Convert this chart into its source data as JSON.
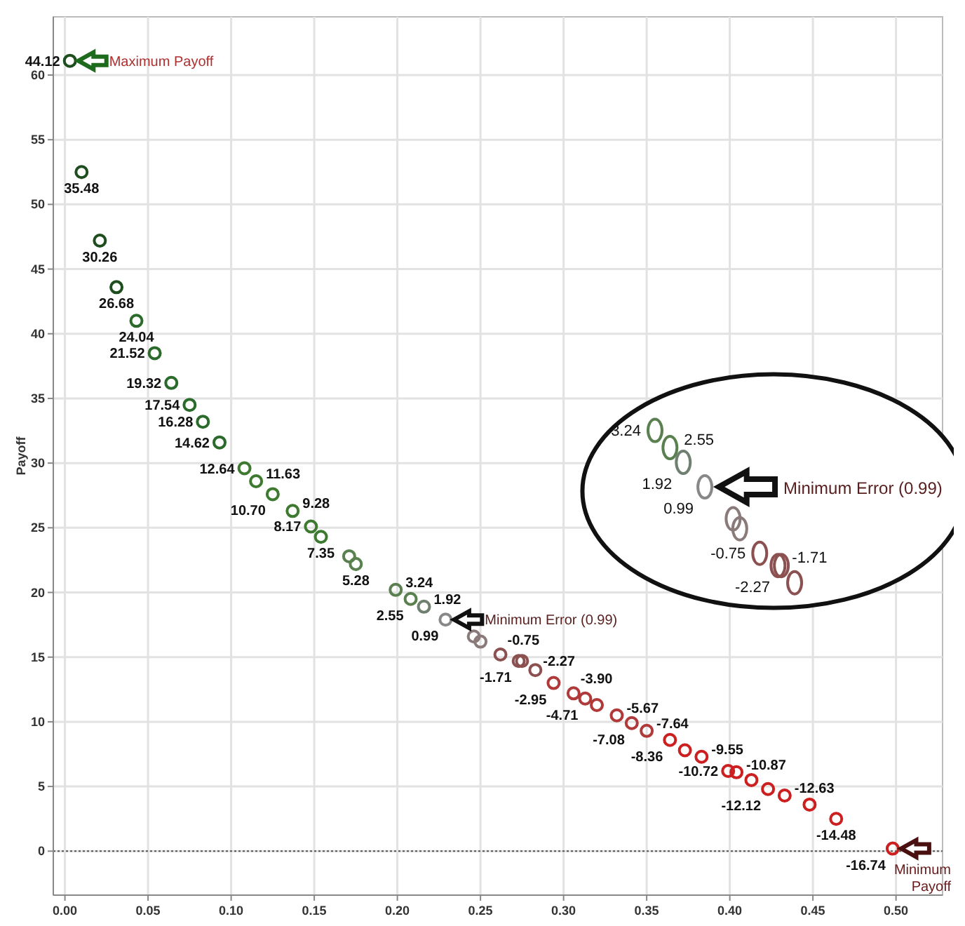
{
  "chart_data": {
    "type": "scatter",
    "ylabel": "Payoff",
    "marker": "circle",
    "grid": true,
    "xlim": [
      -0.007,
      0.528
    ],
    "ylim": [
      -3.4,
      64.5
    ],
    "xticks": [
      {
        "value": 0,
        "label": "0.00"
      },
      {
        "value": 0.05,
        "label": "0.05"
      },
      {
        "value": 0.1,
        "label": "0.10"
      },
      {
        "value": 0.15,
        "label": "0.15"
      },
      {
        "value": 0.2,
        "label": "0.20"
      },
      {
        "value": 0.25,
        "label": "0.25"
      },
      {
        "value": 0.3,
        "label": "0.30"
      },
      {
        "value": 0.35,
        "label": "0.35"
      },
      {
        "value": 0.4,
        "label": "0.40"
      },
      {
        "value": 0.45,
        "label": "0.45"
      },
      {
        "value": 0.5,
        "label": "0.50"
      }
    ],
    "yticks": [
      0,
      5,
      10,
      15,
      20,
      25,
      30,
      35,
      40,
      45,
      50,
      55,
      60
    ],
    "ref_lines": [
      {
        "axis": "y",
        "value": 0,
        "label": null,
        "color": "#555555",
        "line_style": "dotted"
      }
    ],
    "series": [
      {
        "x": [
          0.003,
          0.01,
          0.021,
          0.031,
          0.043,
          0.054,
          0.064,
          0.075,
          0.083,
          0.093,
          0.108,
          0.115,
          0.125,
          0.137,
          0.148,
          0.154,
          0.171,
          0.175,
          0.199,
          0.208,
          0.216,
          0.229,
          0.246,
          0.25,
          0.262,
          0.273,
          0.275,
          0.283,
          0.294,
          0.306,
          0.313,
          0.32,
          0.332,
          0.341,
          0.35,
          0.364,
          0.373,
          0.383,
          0.399,
          0.404,
          0.413,
          0.423,
          0.433,
          0.448,
          0.464,
          0.498
        ],
        "values": [
          61.1,
          52.5,
          47.2,
          43.6,
          41.0,
          38.5,
          36.2,
          34.5,
          33.2,
          31.6,
          29.6,
          28.6,
          27.6,
          26.3,
          25.1,
          24.3,
          22.8,
          22.2,
          20.2,
          19.5,
          18.9,
          17.9,
          16.6,
          16.2,
          15.2,
          14.7,
          14.7,
          14.0,
          13.0,
          12.2,
          11.8,
          11.3,
          10.5,
          9.9,
          9.3,
          8.6,
          7.8,
          7.3,
          6.2,
          6.1,
          5.5,
          4.8,
          4.3,
          3.6,
          2.5,
          0.2
        ],
        "colors": [
          "#1e4d1e",
          "#1e4d1e",
          "#1e4d1e",
          "#1e4d1e",
          "#2a6a2a",
          "#2a6a2a",
          "#2a6a2a",
          "#2a6a2a",
          "#2a6a2a",
          "#2a6a2a",
          "#3d7a2f",
          "#3d7a2f",
          "#3d7a2f",
          "#3d7a2f",
          "#3d7a2f",
          "#3d7a2f",
          "#5a8050",
          "#5a8050",
          "#5a8050",
          "#5a8050",
          "#708070",
          "#888888",
          "#8a7a7a",
          "#8a7a7a",
          "#8b5050",
          "#8b5050",
          "#8b5050",
          "#8b5050",
          "#b03a3a",
          "#b03a3a",
          "#b03a3a",
          "#b03a3a",
          "#b03a3a",
          "#b03a3a",
          "#b03a3a",
          "#cc2020",
          "#cc2020",
          "#cc2020",
          "#cc2020",
          "#cc2020",
          "#cc2020",
          "#cc2020",
          "#cc2020",
          "#cc2020",
          "#cc2020",
          "#cc2020"
        ]
      }
    ],
    "annotations": [
      {
        "text": "Maximum Payoff",
        "x": 0.003,
        "y": 61.1
      },
      {
        "text": "Minimum Error (0.99)",
        "x": 0.229,
        "y": 17.9
      },
      {
        "text": "Minimum Payoff",
        "x": 0.498,
        "y": 0.2
      },
      {
        "text": "44.12",
        "x": 0.003,
        "y": 61.1
      },
      {
        "text": "35.48",
        "x": 0.01,
        "y": 52.5
      },
      {
        "text": "30.26",
        "x": 0.021,
        "y": 47.2
      },
      {
        "text": "26.68",
        "x": 0.031,
        "y": 43.6
      },
      {
        "text": "24.04",
        "x": 0.043,
        "y": 41.0
      },
      {
        "text": "21.52",
        "x": 0.054,
        "y": 38.5
      },
      {
        "text": "19.32",
        "x": 0.064,
        "y": 36.2
      },
      {
        "text": "17.54",
        "x": 0.075,
        "y": 34.5
      },
      {
        "text": "16.28",
        "x": 0.083,
        "y": 33.2
      },
      {
        "text": "14.62",
        "x": 0.093,
        "y": 31.6
      },
      {
        "text": "12.64",
        "x": 0.108,
        "y": 29.6
      },
      {
        "text": "11.63",
        "x": 0.115,
        "y": 28.6
      },
      {
        "text": "10.70",
        "x": 0.125,
        "y": 27.6
      },
      {
        "text": "9.28",
        "x": 0.137,
        "y": 26.3
      },
      {
        "text": "8.17",
        "x": 0.148,
        "y": 25.1
      },
      {
        "text": "7.35",
        "x": 0.154,
        "y": 24.3
      },
      {
        "text": "5.28",
        "x": 0.175,
        "y": 22.2
      },
      {
        "text": "3.24",
        "x": 0.199,
        "y": 20.2
      },
      {
        "text": "2.55",
        "x": 0.208,
        "y": 19.5
      },
      {
        "text": "1.92",
        "x": 0.216,
        "y": 18.9
      },
      {
        "text": "0.99",
        "x": 0.229,
        "y": 17.9
      },
      {
        "text": "-0.75",
        "x": 0.262,
        "y": 15.2
      },
      {
        "text": "-1.71",
        "x": 0.273,
        "y": 14.7
      },
      {
        "text": "-2.27",
        "x": 0.275,
        "y": 14.7
      },
      {
        "text": "-2.95",
        "x": 0.294,
        "y": 13.0
      },
      {
        "text": "-3.90",
        "x": 0.306,
        "y": 12.2
      },
      {
        "text": "-4.71",
        "x": 0.313,
        "y": 11.8
      },
      {
        "text": "-5.67",
        "x": 0.332,
        "y": 10.5
      },
      {
        "text": "-7.08",
        "x": 0.341,
        "y": 9.9
      },
      {
        "text": "-7.64",
        "x": 0.35,
        "y": 9.3
      },
      {
        "text": "-8.36",
        "x": 0.364,
        "y": 8.6
      },
      {
        "text": "-9.55",
        "x": 0.383,
        "y": 7.3
      },
      {
        "text": "-10.72",
        "x": 0.399,
        "y": 6.2
      },
      {
        "text": "-10.87",
        "x": 0.404,
        "y": 6.1
      },
      {
        "text": "-12.12",
        "x": 0.423,
        "y": 4.8
      },
      {
        "text": "-12.63",
        "x": 0.433,
        "y": 4.3
      },
      {
        "text": "-14.48",
        "x": 0.464,
        "y": 2.5
      },
      {
        "text": "-16.74",
        "x": 0.498,
        "y": 0.2
      }
    ]
  }
}
